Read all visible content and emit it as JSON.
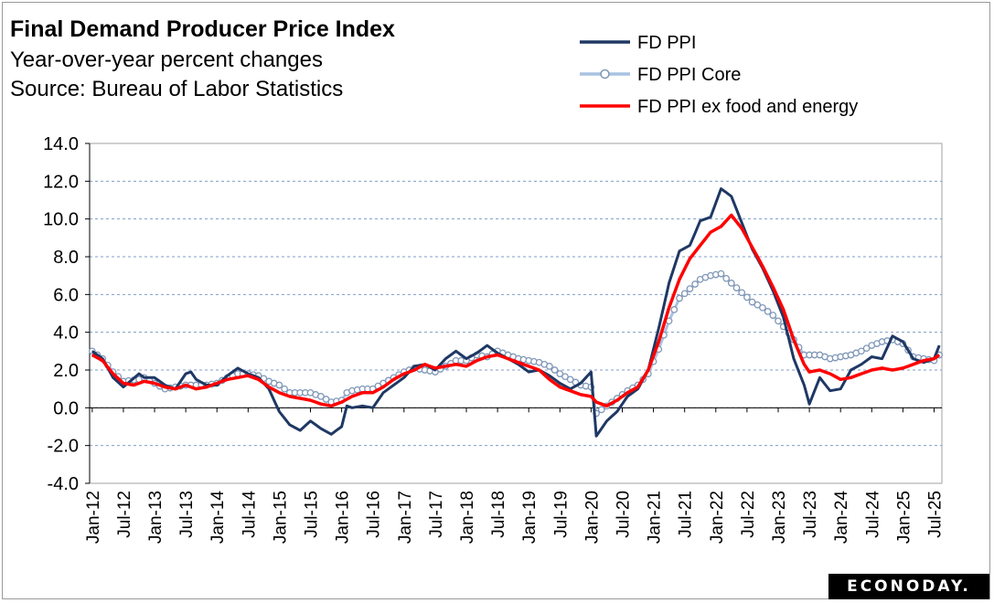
{
  "header": {
    "title": "Final Demand Producer Price Index",
    "subtitle": "Year-over-year percent changes",
    "source": "Source: Bureau of Labor Statistics"
  },
  "brand": "ECONODAY.",
  "chart_data": {
    "type": "line",
    "title": "Final Demand Producer Price Index",
    "ylabel": "Year-over-year percent changes",
    "ylim": [
      -4,
      14
    ],
    "yticks": [
      "14.0",
      "12.0",
      "10.0",
      "8.0",
      "6.0",
      "4.0",
      "2.0",
      "0.0",
      "-2.0",
      "-4.0"
    ],
    "xtick_labels": [
      "Jan-12",
      "Jul-12",
      "Jan-13",
      "Jul-13",
      "Jan-14",
      "Jul-14",
      "Jan-15",
      "Jul-15",
      "Jan-16",
      "Jul-16",
      "Jan-17",
      "Jul-17",
      "Jan-18",
      "Jul-18",
      "Jan-19",
      "Jul-19",
      "Jan-20",
      "Jul-20",
      "Jan-21",
      "Jul-21",
      "Jan-22",
      "Jul-22",
      "Jan-23",
      "Jul-23",
      "Jan-24",
      "Jul-24",
      "Jan-25",
      "Jul-25"
    ],
    "grid": true,
    "legend_position": "top-right",
    "colors": {
      "fd_ppi": "#1f3864",
      "core": "#a9c2e0",
      "core_marker": "#7f97b7",
      "ex_fe": "#ff0000"
    },
    "series": [
      {
        "name": "FD PPI",
        "knots": [
          [
            0,
            3.0
          ],
          [
            2,
            2.6
          ],
          [
            4,
            1.6
          ],
          [
            6,
            1.1
          ],
          [
            9,
            1.8
          ],
          [
            10,
            1.6
          ],
          [
            12,
            1.6
          ],
          [
            14,
            1.2
          ],
          [
            16,
            1.0
          ],
          [
            18,
            1.8
          ],
          [
            19,
            1.9
          ],
          [
            20,
            1.5
          ],
          [
            22,
            1.2
          ],
          [
            24,
            1.2
          ],
          [
            26,
            1.7
          ],
          [
            28,
            2.1
          ],
          [
            30,
            1.8
          ],
          [
            32,
            1.6
          ],
          [
            34,
            1.0
          ],
          [
            36,
            -0.2
          ],
          [
            38,
            -0.9
          ],
          [
            40,
            -1.2
          ],
          [
            42,
            -0.7
          ],
          [
            44,
            -1.1
          ],
          [
            46,
            -1.4
          ],
          [
            48,
            -1.0
          ],
          [
            49,
            0.1
          ],
          [
            50,
            0.0
          ],
          [
            52,
            0.1
          ],
          [
            54,
            0.0
          ],
          [
            56,
            0.8
          ],
          [
            58,
            1.2
          ],
          [
            60,
            1.6
          ],
          [
            62,
            2.2
          ],
          [
            64,
            2.3
          ],
          [
            66,
            2.0
          ],
          [
            68,
            2.6
          ],
          [
            70,
            3.0
          ],
          [
            72,
            2.6
          ],
          [
            74,
            2.9
          ],
          [
            76,
            3.3
          ],
          [
            78,
            2.9
          ],
          [
            80,
            2.6
          ],
          [
            82,
            2.3
          ],
          [
            84,
            1.9
          ],
          [
            86,
            2.0
          ],
          [
            88,
            1.7
          ],
          [
            90,
            1.3
          ],
          [
            92,
            1.0
          ],
          [
            94,
            1.3
          ],
          [
            96,
            1.9
          ],
          [
            97,
            -1.5
          ],
          [
            99,
            -0.7
          ],
          [
            101,
            -0.2
          ],
          [
            103,
            0.6
          ],
          [
            105,
            1.0
          ],
          [
            107,
            2.0
          ],
          [
            109,
            4.2
          ],
          [
            111,
            6.6
          ],
          [
            113,
            8.3
          ],
          [
            115,
            8.6
          ],
          [
            117,
            9.9
          ],
          [
            119,
            10.1
          ],
          [
            121,
            11.6
          ],
          [
            123,
            11.2
          ],
          [
            125,
            9.8
          ],
          [
            127,
            8.4
          ],
          [
            129,
            7.4
          ],
          [
            131,
            6.2
          ],
          [
            133,
            4.8
          ],
          [
            135,
            2.6
          ],
          [
            137,
            1.2
          ],
          [
            138,
            0.2
          ],
          [
            140,
            1.6
          ],
          [
            142,
            0.9
          ],
          [
            144,
            1.0
          ],
          [
            146,
            2.0
          ],
          [
            148,
            2.3
          ],
          [
            150,
            2.7
          ],
          [
            152,
            2.6
          ],
          [
            154,
            3.8
          ],
          [
            156,
            3.5
          ],
          [
            158,
            2.6
          ],
          [
            160,
            2.4
          ],
          [
            162,
            2.6
          ],
          [
            163,
            3.3
          ]
        ]
      },
      {
        "name": "FD PPI Core",
        "knots": [
          [
            0,
            3.0
          ],
          [
            2,
            2.6
          ],
          [
            4,
            1.9
          ],
          [
            6,
            1.4
          ],
          [
            9,
            1.5
          ],
          [
            10,
            1.6
          ],
          [
            12,
            1.3
          ],
          [
            14,
            1.0
          ],
          [
            16,
            1.1
          ],
          [
            18,
            1.2
          ],
          [
            20,
            1.2
          ],
          [
            22,
            1.2
          ],
          [
            24,
            1.3
          ],
          [
            26,
            1.6
          ],
          [
            28,
            1.8
          ],
          [
            30,
            1.8
          ],
          [
            32,
            1.7
          ],
          [
            34,
            1.4
          ],
          [
            36,
            1.2
          ],
          [
            38,
            0.8
          ],
          [
            40,
            0.8
          ],
          [
            42,
            0.8
          ],
          [
            44,
            0.6
          ],
          [
            46,
            0.3
          ],
          [
            48,
            0.4
          ],
          [
            49,
            0.8
          ],
          [
            50,
            0.9
          ],
          [
            52,
            1.0
          ],
          [
            54,
            1.0
          ],
          [
            56,
            1.3
          ],
          [
            58,
            1.6
          ],
          [
            60,
            1.9
          ],
          [
            62,
            2.1
          ],
          [
            64,
            2.0
          ],
          [
            66,
            1.9
          ],
          [
            68,
            2.2
          ],
          [
            70,
            2.5
          ],
          [
            72,
            2.5
          ],
          [
            74,
            2.8
          ],
          [
            76,
            2.7
          ],
          [
            78,
            3.0
          ],
          [
            80,
            2.8
          ],
          [
            82,
            2.6
          ],
          [
            84,
            2.5
          ],
          [
            86,
            2.4
          ],
          [
            88,
            2.2
          ],
          [
            90,
            1.8
          ],
          [
            92,
            1.5
          ],
          [
            94,
            1.2
          ],
          [
            96,
            1.1
          ],
          [
            97,
            -0.3
          ],
          [
            99,
            0.1
          ],
          [
            101,
            0.5
          ],
          [
            103,
            0.9
          ],
          [
            105,
            1.2
          ],
          [
            107,
            1.8
          ],
          [
            109,
            3.1
          ],
          [
            111,
            4.6
          ],
          [
            113,
            5.8
          ],
          [
            115,
            6.3
          ],
          [
            117,
            6.8
          ],
          [
            119,
            7.0
          ],
          [
            121,
            7.1
          ],
          [
            123,
            6.6
          ],
          [
            125,
            6.1
          ],
          [
            127,
            5.6
          ],
          [
            129,
            5.3
          ],
          [
            131,
            4.9
          ],
          [
            133,
            4.3
          ],
          [
            135,
            3.6
          ],
          [
            137,
            2.8
          ],
          [
            138,
            2.8
          ],
          [
            140,
            2.8
          ],
          [
            142,
            2.6
          ],
          [
            144,
            2.7
          ],
          [
            146,
            2.8
          ],
          [
            148,
            3.0
          ],
          [
            150,
            3.3
          ],
          [
            152,
            3.5
          ],
          [
            154,
            3.6
          ],
          [
            156,
            3.4
          ],
          [
            158,
            2.7
          ],
          [
            160,
            2.6
          ],
          [
            162,
            2.5
          ],
          [
            163,
            2.8
          ]
        ]
      },
      {
        "name": "FD PPI ex food and energy",
        "knots": [
          [
            0,
            2.8
          ],
          [
            2,
            2.5
          ],
          [
            4,
            1.8
          ],
          [
            6,
            1.3
          ],
          [
            8,
            1.2
          ],
          [
            10,
            1.4
          ],
          [
            12,
            1.3
          ],
          [
            14,
            1.1
          ],
          [
            16,
            1.0
          ],
          [
            18,
            1.2
          ],
          [
            20,
            1.0
          ],
          [
            22,
            1.1
          ],
          [
            24,
            1.3
          ],
          [
            26,
            1.5
          ],
          [
            28,
            1.6
          ],
          [
            30,
            1.7
          ],
          [
            32,
            1.5
          ],
          [
            34,
            1.1
          ],
          [
            36,
            0.8
          ],
          [
            38,
            0.6
          ],
          [
            40,
            0.5
          ],
          [
            42,
            0.4
          ],
          [
            44,
            0.2
          ],
          [
            46,
            0.1
          ],
          [
            48,
            0.3
          ],
          [
            50,
            0.6
          ],
          [
            52,
            0.8
          ],
          [
            54,
            0.8
          ],
          [
            56,
            1.1
          ],
          [
            58,
            1.5
          ],
          [
            60,
            1.8
          ],
          [
            62,
            2.0
          ],
          [
            64,
            2.3
          ],
          [
            66,
            2.1
          ],
          [
            68,
            2.2
          ],
          [
            70,
            2.3
          ],
          [
            72,
            2.2
          ],
          [
            74,
            2.5
          ],
          [
            76,
            2.7
          ],
          [
            78,
            2.8
          ],
          [
            80,
            2.6
          ],
          [
            82,
            2.4
          ],
          [
            84,
            2.2
          ],
          [
            86,
            2.0
          ],
          [
            88,
            1.5
          ],
          [
            90,
            1.1
          ],
          [
            92,
            0.9
          ],
          [
            94,
            0.7
          ],
          [
            96,
            0.6
          ],
          [
            97,
            0.3
          ],
          [
            99,
            0.1
          ],
          [
            101,
            0.4
          ],
          [
            103,
            0.8
          ],
          [
            105,
            1.1
          ],
          [
            107,
            2.0
          ],
          [
            109,
            3.5
          ],
          [
            111,
            5.3
          ],
          [
            113,
            6.8
          ],
          [
            115,
            7.9
          ],
          [
            117,
            8.6
          ],
          [
            119,
            9.3
          ],
          [
            121,
            9.6
          ],
          [
            123,
            10.2
          ],
          [
            125,
            9.5
          ],
          [
            127,
            8.5
          ],
          [
            129,
            7.5
          ],
          [
            131,
            6.4
          ],
          [
            133,
            5.2
          ],
          [
            135,
            3.6
          ],
          [
            137,
            2.3
          ],
          [
            138,
            1.9
          ],
          [
            140,
            2.0
          ],
          [
            142,
            1.8
          ],
          [
            144,
            1.5
          ],
          [
            146,
            1.6
          ],
          [
            148,
            1.8
          ],
          [
            150,
            2.0
          ],
          [
            152,
            2.1
          ],
          [
            154,
            2.0
          ],
          [
            156,
            2.1
          ],
          [
            158,
            2.3
          ],
          [
            160,
            2.5
          ],
          [
            162,
            2.6
          ],
          [
            163,
            2.8
          ]
        ]
      }
    ]
  }
}
